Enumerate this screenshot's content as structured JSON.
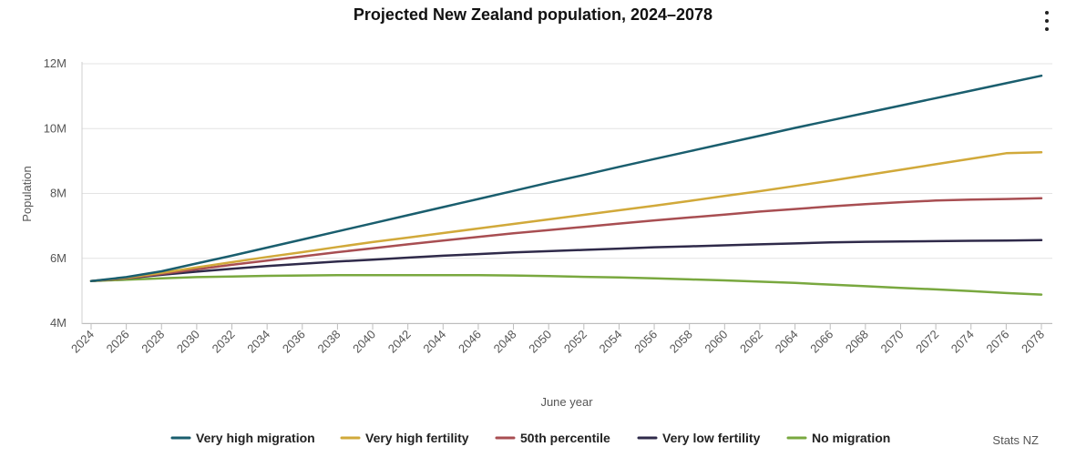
{
  "chart_data": {
    "type": "line",
    "title": "Projected New Zealand population, 2024–2078",
    "xlabel": "June year",
    "ylabel": "Population",
    "xlim": [
      2024,
      2078
    ],
    "ylim": [
      4,
      12
    ],
    "y_unit": "M",
    "y_ticks": [
      4,
      6,
      8,
      10,
      12
    ],
    "y_tick_labels": [
      "4M",
      "6M",
      "8M",
      "10M",
      "12M"
    ],
    "x_ticks": [
      2024,
      2026,
      2028,
      2030,
      2032,
      2034,
      2036,
      2038,
      2040,
      2042,
      2044,
      2046,
      2048,
      2050,
      2052,
      2054,
      2056,
      2058,
      2060,
      2062,
      2064,
      2066,
      2068,
      2070,
      2072,
      2074,
      2076,
      2078
    ],
    "x_tick_labels": [
      "2024",
      "2026",
      "2028",
      "2030",
      "2032",
      "2034",
      "2036",
      "2038",
      "2040",
      "2042",
      "2044",
      "2046",
      "2048",
      "2050",
      "2052",
      "2054",
      "2056",
      "2058",
      "2060",
      "2062",
      "2064",
      "2066",
      "2068",
      "2070",
      "2072",
      "2074",
      "2076",
      "2078"
    ],
    "grid": "horizontal",
    "legend_position": "bottom",
    "x": [
      2024,
      2026,
      2028,
      2030,
      2032,
      2034,
      2036,
      2038,
      2040,
      2042,
      2044,
      2046,
      2048,
      2050,
      2052,
      2054,
      2056,
      2058,
      2060,
      2062,
      2064,
      2066,
      2068,
      2070,
      2072,
      2074,
      2076,
      2078
    ],
    "series": [
      {
        "name": "Very high migration",
        "color": "#1a5e6e",
        "values": [
          5.3,
          5.42,
          5.6,
          5.84,
          6.08,
          6.33,
          6.58,
          6.83,
          7.08,
          7.33,
          7.58,
          7.83,
          8.08,
          8.33,
          8.57,
          8.82,
          9.06,
          9.3,
          9.54,
          9.78,
          10.02,
          10.25,
          10.48,
          10.71,
          10.94,
          11.17,
          11.4,
          11.63
        ]
      },
      {
        "name": "Very high fertility",
        "color": "#d1a93a",
        "values": [
          5.3,
          5.4,
          5.55,
          5.72,
          5.88,
          6.04,
          6.19,
          6.35,
          6.5,
          6.64,
          6.78,
          6.92,
          7.06,
          7.2,
          7.34,
          7.48,
          7.62,
          7.77,
          7.92,
          8.07,
          8.23,
          8.39,
          8.56,
          8.73,
          8.9,
          9.07,
          9.24,
          9.27
        ]
      },
      {
        "name": "50th percentile",
        "color": "#a84e52",
        "values": [
          5.3,
          5.39,
          5.52,
          5.66,
          5.8,
          5.93,
          6.06,
          6.19,
          6.31,
          6.43,
          6.55,
          6.66,
          6.77,
          6.87,
          6.97,
          7.07,
          7.17,
          7.26,
          7.35,
          7.44,
          7.52,
          7.6,
          7.67,
          7.73,
          7.78,
          7.81,
          7.83,
          7.85
        ]
      },
      {
        "name": "Very low fertility",
        "color": "#2f2a4a",
        "values": [
          5.3,
          5.38,
          5.49,
          5.59,
          5.68,
          5.76,
          5.83,
          5.9,
          5.96,
          6.02,
          6.08,
          6.13,
          6.18,
          6.22,
          6.26,
          6.3,
          6.34,
          6.37,
          6.4,
          6.43,
          6.46,
          6.49,
          6.51,
          6.52,
          6.53,
          6.54,
          6.55,
          6.56
        ]
      },
      {
        "name": "No migration",
        "color": "#79a83f",
        "values": [
          5.3,
          5.34,
          5.38,
          5.42,
          5.44,
          5.46,
          5.47,
          5.48,
          5.48,
          5.48,
          5.48,
          5.48,
          5.47,
          5.45,
          5.43,
          5.41,
          5.38,
          5.35,
          5.32,
          5.28,
          5.24,
          5.19,
          5.14,
          5.09,
          5.04,
          4.99,
          4.93,
          4.88
        ]
      }
    ]
  },
  "credit": "Stats NZ"
}
